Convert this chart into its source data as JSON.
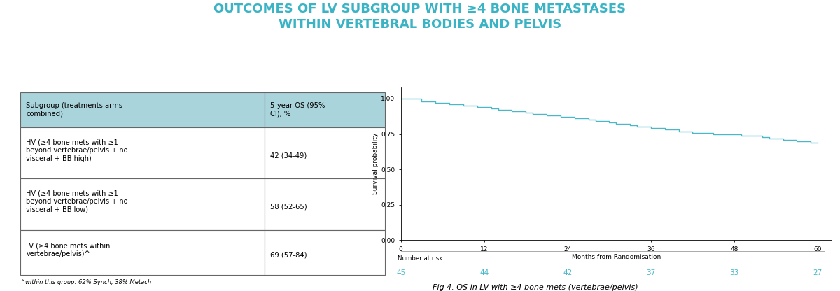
{
  "title_line1": "OUTCOMES OF LV SUBGROUP WITH ≥4 BONE METASTASES",
  "title_line2": "WITHIN VERTEBRAL BODIES AND PELVIS",
  "title_color": "#3ab3c5",
  "title_fontsize": 13,
  "table_header": [
    "Subgroup (treatments arms\ncombined)",
    "5-year OS (95%\nCI), %"
  ],
  "table_rows": [
    [
      "HV (≥4 bone mets with ≥1\nbeyond vertebrae/pelvis + no\nvisceral + BB high)",
      "42 (34-49)"
    ],
    [
      "HV (≥4 bone mets with ≥1\nbeyond vertebrae/pelvis + no\nvisceral + BB low)",
      "58 (52-65)"
    ],
    [
      "LV (≥4 bone mets within\nvertebrae/pelvis)^",
      "69 (57-84)"
    ]
  ],
  "table_note": "^within this group: 62% Synch, 38% Metach",
  "header_bg": "#aad4dc",
  "table_border_color": "#666666",
  "km_color": "#4ab8c8",
  "km_x": [
    0,
    1,
    2,
    3,
    4,
    5,
    6,
    7,
    8,
    9,
    10,
    11,
    12,
    13,
    14,
    15,
    16,
    17,
    18,
    19,
    20,
    21,
    22,
    23,
    24,
    25,
    26,
    27,
    28,
    29,
    30,
    31,
    32,
    33,
    34,
    35,
    36,
    37,
    38,
    39,
    40,
    41,
    42,
    43,
    44,
    45,
    46,
    47,
    48,
    49,
    50,
    51,
    52,
    53,
    54,
    55,
    56,
    57,
    58,
    59,
    60
  ],
  "km_y": [
    1.0,
    1.0,
    1.0,
    0.98,
    0.98,
    0.97,
    0.97,
    0.96,
    0.96,
    0.95,
    0.95,
    0.94,
    0.94,
    0.93,
    0.92,
    0.92,
    0.91,
    0.91,
    0.9,
    0.89,
    0.89,
    0.88,
    0.88,
    0.87,
    0.87,
    0.86,
    0.86,
    0.85,
    0.84,
    0.84,
    0.83,
    0.82,
    0.82,
    0.81,
    0.8,
    0.8,
    0.79,
    0.79,
    0.78,
    0.78,
    0.77,
    0.77,
    0.76,
    0.76,
    0.76,
    0.75,
    0.75,
    0.75,
    0.75,
    0.74,
    0.74,
    0.74,
    0.73,
    0.72,
    0.72,
    0.71,
    0.71,
    0.7,
    0.7,
    0.69,
    0.69
  ],
  "x_ticks": [
    0,
    12,
    24,
    36,
    48,
    60
  ],
  "x_label": "Months from Randomisation",
  "y_label": "Survival probability",
  "y_ticks": [
    0.0,
    0.25,
    0.5,
    0.75,
    1.0
  ],
  "y_tick_labels": [
    "0.00",
    "0.25",
    "0.50",
    "0.75",
    "1.00"
  ],
  "number_at_risk_label": "Number at risk",
  "risk_x": [
    0,
    12,
    24,
    36,
    48,
    60
  ],
  "risk_values": [
    45,
    44,
    42,
    37,
    33,
    27
  ],
  "fig_caption": "Fig 4. OS in LV with ≥4 bone mets (vertebrae/pelvis)",
  "risk_color": "#4ab8c8",
  "background_color": "#ffffff"
}
